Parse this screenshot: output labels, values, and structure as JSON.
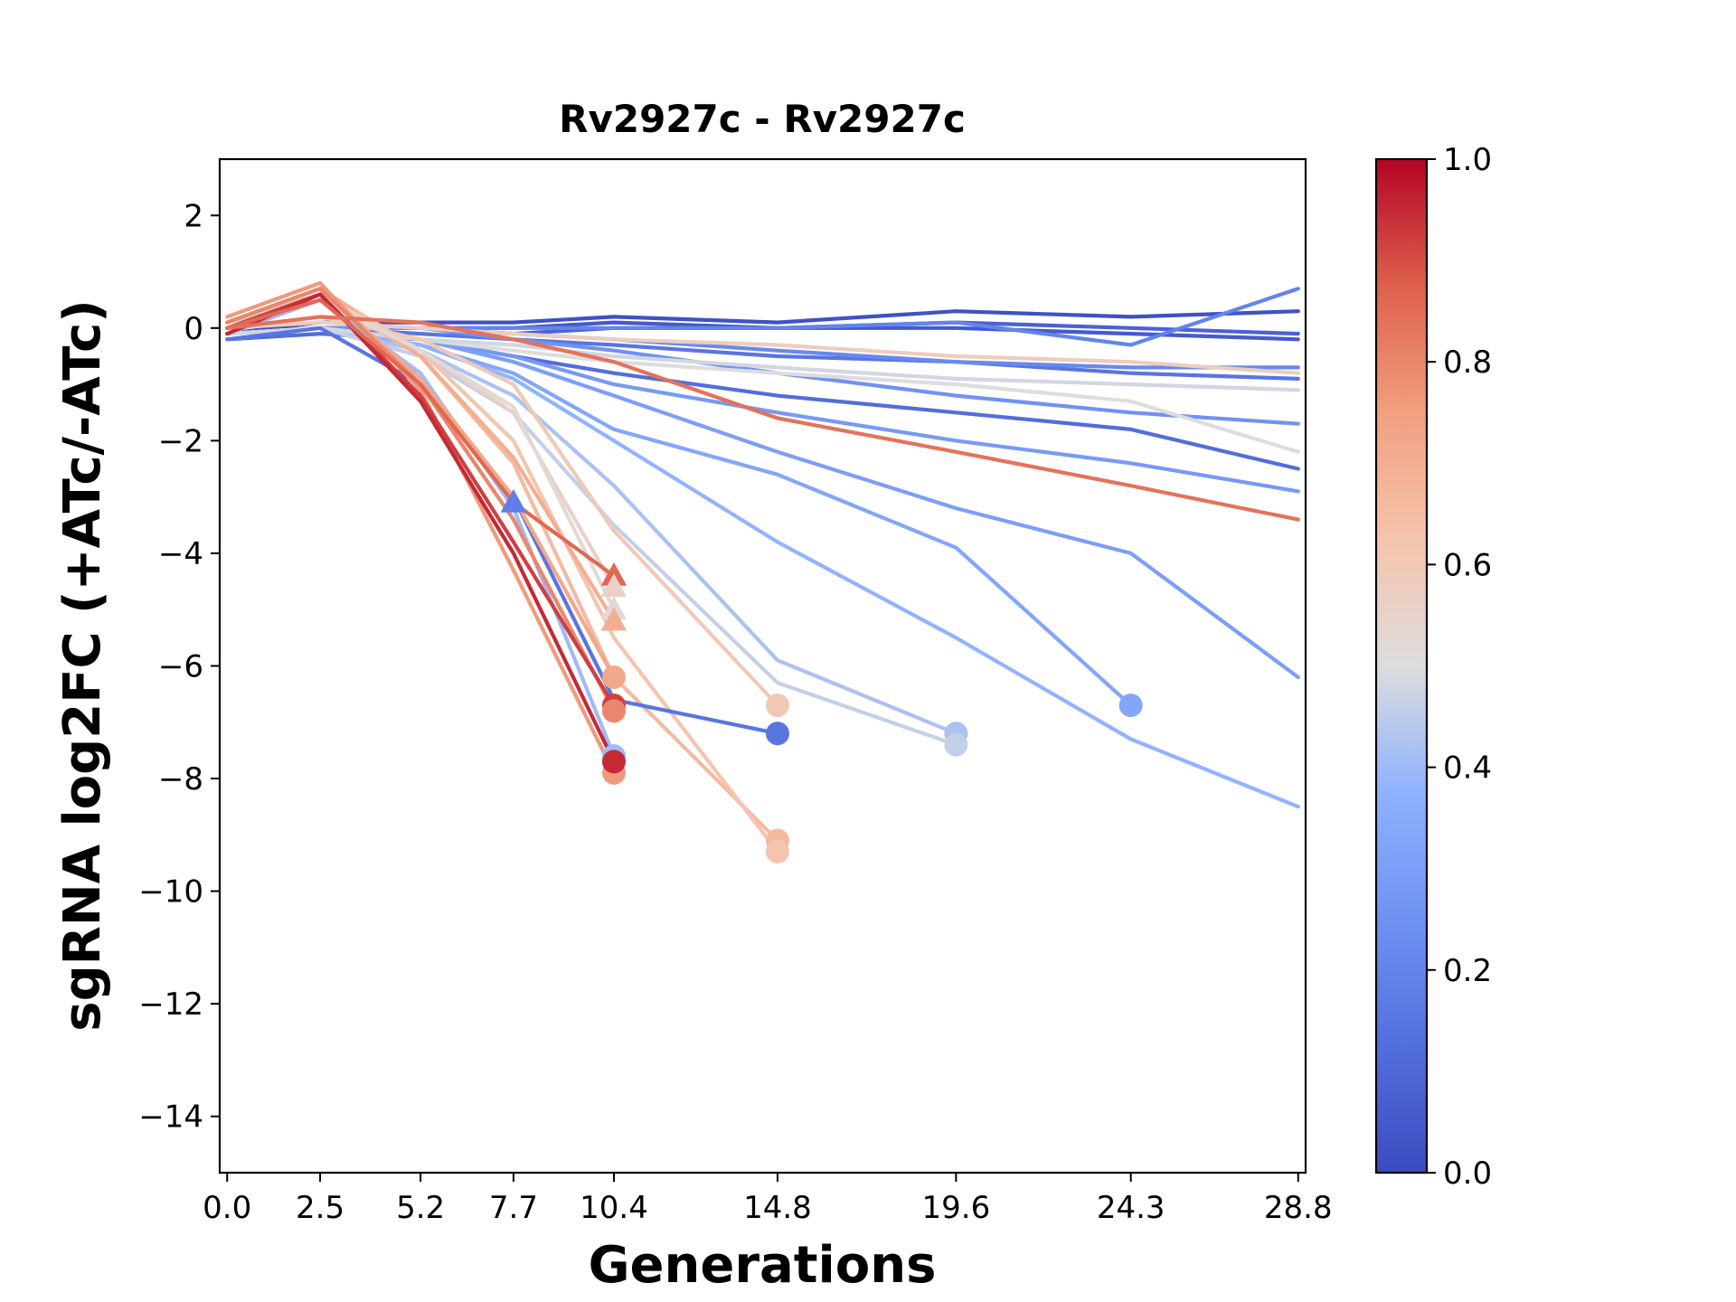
{
  "chart_data": {
    "type": "line",
    "title": "Rv2927c - Rv2927c",
    "xlabel": "Generations",
    "ylabel": "sgRNA log2FC (+ATc/-ATc)",
    "xlim": [
      -0.2,
      29.0
    ],
    "ylim": [
      -15,
      3
    ],
    "xticks": [
      0.0,
      2.5,
      5.2,
      7.7,
      10.4,
      14.8,
      19.6,
      24.3,
      28.8
    ],
    "xtick_labels": [
      "0.0",
      "2.5",
      "5.2",
      "7.7",
      "10.4",
      "14.8",
      "19.6",
      "24.3",
      "28.8"
    ],
    "yticks": [
      2,
      0,
      -2,
      -4,
      -6,
      -8,
      -10,
      -12,
      -14
    ],
    "ytick_labels": [
      "2",
      "0",
      "−2",
      "−4",
      "−6",
      "−8",
      "−10",
      "−12",
      "−14"
    ],
    "grid": false,
    "colorbar": {
      "colormap": "coolwarm",
      "range": [
        0.0,
        1.0
      ],
      "ticks": [
        0.0,
        0.2,
        0.4,
        0.6,
        0.8,
        1.0
      ],
      "tick_labels": [
        "0.0",
        "0.2",
        "0.4",
        "0.6",
        "0.8",
        "1.0"
      ]
    },
    "series": [
      {
        "c": 0.02,
        "x": [
          0,
          2.5,
          5.2,
          7.7,
          10.4,
          14.8,
          19.6,
          24.3,
          28.8
        ],
        "y": [
          -0.1,
          0.1,
          0.1,
          0.1,
          0.2,
          0.1,
          0.3,
          0.2,
          0.3
        ]
      },
      {
        "c": 0.05,
        "x": [
          0,
          2.5,
          5.2,
          7.7,
          10.4,
          14.8,
          19.6,
          24.3,
          28.8
        ],
        "y": [
          -0.1,
          0.0,
          0.0,
          0.0,
          0.1,
          0.0,
          0.0,
          -0.1,
          -0.2
        ]
      },
      {
        "c": 0.08,
        "x": [
          0,
          2.5,
          5.2,
          7.7,
          10.4,
          14.8,
          19.6,
          24.3,
          28.8
        ],
        "y": [
          -0.1,
          0.0,
          0.0,
          -0.1,
          0.0,
          0.0,
          0.1,
          0.0,
          -0.1
        ]
      },
      {
        "c": 0.12,
        "x": [
          0,
          2.5,
          5.2,
          7.7,
          10.4,
          14.8,
          19.6,
          24.3,
          28.8
        ],
        "y": [
          -0.2,
          -0.1,
          -0.2,
          -0.5,
          -0.8,
          -1.2,
          -1.5,
          -1.8,
          -2.5
        ]
      },
      {
        "c": 0.15,
        "x": [
          0,
          2.5,
          5.2,
          7.7,
          10.4,
          14.8,
          19.6,
          24.3,
          28.8
        ],
        "y": [
          -0.1,
          0.0,
          -0.1,
          -0.2,
          -0.3,
          -0.5,
          -0.6,
          -0.8,
          -0.9
        ]
      },
      {
        "c": 0.2,
        "x": [
          0,
          2.5,
          5.2,
          7.7,
          10.4,
          14.8,
          19.6,
          24.3,
          28.8
        ],
        "y": [
          -0.1,
          0.0,
          0.0,
          0.0,
          0.0,
          0.0,
          0.1,
          -0.3,
          0.7
        ]
      },
      {
        "c": 0.22,
        "x": [
          0,
          2.5,
          5.2,
          7.7,
          10.4,
          14.8,
          19.6,
          24.3,
          28.8
        ],
        "y": [
          -0.1,
          0.0,
          0.0,
          -0.1,
          -0.2,
          -0.4,
          -0.6,
          -0.7,
          -0.7
        ]
      },
      {
        "c": 0.25,
        "x": [
          0,
          2.5,
          5.2,
          7.7,
          10.4,
          14.8,
          19.6,
          24.3,
          28.8
        ],
        "y": [
          -0.1,
          0.0,
          0.0,
          -0.2,
          -0.4,
          -0.8,
          -1.2,
          -1.5,
          -1.7
        ]
      },
      {
        "c": 0.28,
        "x": [
          0,
          2.5,
          5.2,
          7.7,
          10.4,
          14.8,
          19.6,
          24.3,
          28.8
        ],
        "y": [
          -0.1,
          0.0,
          -0.2,
          -0.5,
          -1.0,
          -1.5,
          -2.0,
          -2.4,
          -2.9
        ]
      },
      {
        "c": 0.3,
        "x": [
          0,
          2.5,
          5.2,
          7.7,
          10.4,
          14.8,
          19.6,
          24.3,
          28.8
        ],
        "y": [
          -0.1,
          0.0,
          -0.2,
          -0.6,
          -1.2,
          -2.2,
          -3.2,
          -4.0,
          -6.2
        ]
      },
      {
        "c": 0.33,
        "x": [
          0,
          2.5,
          5.2,
          7.7,
          10.4,
          14.8,
          19.6,
          24.3
        ],
        "y": [
          -0.1,
          0.0,
          -0.3,
          -0.8,
          -1.8,
          -2.6,
          -3.9,
          -6.7
        ]
      },
      {
        "c": 0.38,
        "x": [
          0,
          2.5,
          5.2,
          7.7,
          10.4,
          14.8,
          19.6,
          24.3,
          28.8
        ],
        "y": [
          -0.1,
          0.0,
          -0.3,
          -0.9,
          -2.0,
          -3.8,
          -5.5,
          -7.3,
          -8.5
        ]
      },
      {
        "c": 0.42,
        "x": [
          0,
          2.5,
          5.2,
          7.7,
          10.4,
          14.8,
          19.6
        ],
        "y": [
          -0.1,
          0.0,
          -0.4,
          -1.2,
          -2.8,
          -5.9,
          -7.2
        ]
      },
      {
        "c": 0.46,
        "x": [
          0,
          2.5,
          5.2,
          7.7,
          10.4,
          14.8,
          19.6
        ],
        "y": [
          -0.1,
          0.0,
          -0.5,
          -1.5,
          -3.5,
          -6.3,
          -7.4
        ]
      },
      {
        "c": 0.5,
        "x": [
          0,
          2.5,
          5.2,
          7.7,
          10.4,
          14.8,
          19.6,
          24.3,
          28.8
        ],
        "y": [
          -0.1,
          0.0,
          -0.2,
          -0.4,
          -0.6,
          -0.8,
          -1.0,
          -1.3,
          -2.2
        ]
      },
      {
        "c": 0.48,
        "x": [
          0,
          2.5,
          5.2,
          7.7,
          10.4,
          14.8,
          19.6,
          24.3,
          28.8
        ],
        "y": [
          -0.1,
          0.0,
          -0.2,
          -0.3,
          -0.5,
          -0.7,
          -0.9,
          -1.0,
          -1.1
        ]
      },
      {
        "c": 0.58,
        "x": [
          0,
          2.5,
          5.2,
          7.7,
          10.4,
          14.8,
          19.6,
          24.3,
          28.8
        ],
        "y": [
          0.0,
          0.1,
          0.0,
          -0.1,
          -0.2,
          -0.3,
          -0.5,
          -0.6,
          -0.8
        ]
      },
      {
        "c": 0.6,
        "x": [
          0,
          2.5,
          5.2,
          7.7,
          10.4,
          14.8
        ],
        "y": [
          0.0,
          0.2,
          -0.2,
          -1.0,
          -3.6,
          -6.7
        ]
      },
      {
        "c": 0.66,
        "x": [
          0,
          2.5,
          5.2,
          7.7,
          10.4,
          14.8
        ],
        "y": [
          0.1,
          0.6,
          -0.5,
          -2.4,
          -6.2,
          -9.1
        ]
      },
      {
        "c": 0.62,
        "x": [
          0,
          2.5,
          5.2,
          7.7,
          10.4,
          14.8
        ],
        "y": [
          0.1,
          0.7,
          -0.4,
          -2.0,
          -5.5,
          -9.3
        ]
      },
      {
        "c": 0.7,
        "x": [
          0,
          2.5,
          5.2,
          7.7,
          10.4
        ],
        "y": [
          0.1,
          0.7,
          -0.5,
          -2.3,
          -5.2
        ]
      },
      {
        "c": 0.56,
        "x": [
          0,
          2.5,
          5.2,
          7.7,
          10.4
        ],
        "y": [
          0.1,
          0.6,
          -0.4,
          -1.5,
          -4.6
        ]
      },
      {
        "c": 0.52,
        "x": [
          0,
          2.5,
          5.2,
          7.7,
          10.4
        ],
        "y": [
          0.1,
          0.5,
          -0.4,
          -1.4,
          -5.0
        ]
      },
      {
        "c": 0.15,
        "x": [
          0,
          2.5,
          5.2,
          7.7,
          10.4,
          14.8
        ],
        "y": [
          -0.2,
          0.0,
          -1.0,
          -3.0,
          -6.6,
          -7.2
        ]
      },
      {
        "c": 0.4,
        "x": [
          0,
          2.5,
          5.2,
          7.7,
          10.4
        ],
        "y": [
          -0.1,
          0.5,
          -0.8,
          -3.2,
          -7.6
        ]
      },
      {
        "c": 0.72,
        "x": [
          0,
          2.5,
          5.2,
          7.7,
          10.4
        ],
        "y": [
          0.1,
          0.7,
          -0.9,
          -3.0,
          -6.2
        ]
      },
      {
        "c": 0.76,
        "x": [
          0,
          2.5,
          5.2,
          7.7,
          10.4
        ],
        "y": [
          0.2,
          0.8,
          -1.1,
          -4.3,
          -7.9
        ]
      },
      {
        "c": 0.8,
        "x": [
          0,
          2.5,
          5.2,
          7.7,
          10.4
        ],
        "y": [
          0.1,
          0.7,
          -1.0,
          -3.4,
          -6.8
        ]
      },
      {
        "c": 0.92,
        "x": [
          0,
          2.5,
          5.2,
          7.7,
          10.4
        ],
        "y": [
          0.0,
          0.6,
          -1.2,
          -3.8,
          -6.7
        ]
      },
      {
        "c": 0.95,
        "x": [
          0,
          2.5,
          5.2,
          7.7,
          10.4
        ],
        "y": [
          -0.1,
          0.6,
          -1.3,
          -4.0,
          -7.7
        ]
      },
      {
        "c": 0.86,
        "x": [
          0,
          2.5,
          5.2,
          7.7,
          10.4
        ],
        "y": [
          0.0,
          0.5,
          -1.0,
          -3.1,
          -4.4
        ]
      },
      {
        "c": 0.84,
        "x": [
          0,
          2.5,
          5.2,
          7.7,
          10.4,
          14.8,
          19.6,
          24.3,
          28.8
        ],
        "y": [
          0.0,
          0.2,
          0.1,
          -0.2,
          -0.6,
          -1.6,
          -2.2,
          -2.8,
          -3.4
        ]
      }
    ],
    "end_markers": [
      {
        "c": 0.18,
        "x": 7.7,
        "y": -3.1,
        "shape": "triangle"
      },
      {
        "c": 0.86,
        "x": 10.4,
        "y": -4.4,
        "shape": "triangle"
      },
      {
        "c": 0.56,
        "x": 10.4,
        "y": -4.6,
        "shape": "triangle"
      },
      {
        "c": 0.52,
        "x": 10.4,
        "y": -5.0,
        "shape": "triangle"
      },
      {
        "c": 0.7,
        "x": 10.4,
        "y": -5.2,
        "shape": "triangle"
      },
      {
        "c": 0.72,
        "x": 10.4,
        "y": -6.2,
        "shape": "circle"
      },
      {
        "c": 0.92,
        "x": 10.4,
        "y": -6.7,
        "shape": "circle"
      },
      {
        "c": 0.8,
        "x": 10.4,
        "y": -6.8,
        "shape": "circle"
      },
      {
        "c": 0.4,
        "x": 10.4,
        "y": -7.6,
        "shape": "circle"
      },
      {
        "c": 0.76,
        "x": 10.4,
        "y": -7.9,
        "shape": "circle"
      },
      {
        "c": 0.95,
        "x": 10.4,
        "y": -7.7,
        "shape": "circle"
      },
      {
        "c": 0.6,
        "x": 14.8,
        "y": -6.7,
        "shape": "circle"
      },
      {
        "c": 0.15,
        "x": 14.8,
        "y": -7.2,
        "shape": "circle"
      },
      {
        "c": 0.66,
        "x": 14.8,
        "y": -9.1,
        "shape": "circle"
      },
      {
        "c": 0.62,
        "x": 14.8,
        "y": -9.3,
        "shape": "circle"
      },
      {
        "c": 0.42,
        "x": 19.6,
        "y": -7.2,
        "shape": "circle"
      },
      {
        "c": 0.46,
        "x": 19.6,
        "y": -7.4,
        "shape": "circle"
      },
      {
        "c": 0.33,
        "x": 24.3,
        "y": -6.7,
        "shape": "circle"
      }
    ]
  }
}
